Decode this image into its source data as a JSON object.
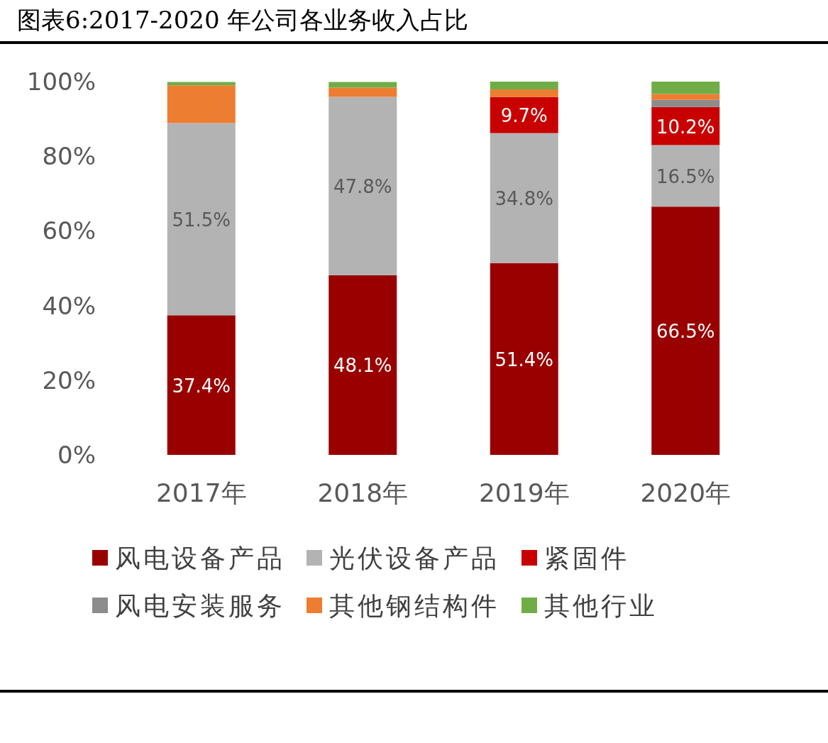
{
  "chart_data": {
    "type": "bar",
    "stacked": true,
    "title": "图表6:2017-2020 年公司各业务收入占比",
    "categories": [
      "2017年",
      "2018年",
      "2019年",
      "2020年"
    ],
    "series": [
      {
        "name": "风电设备产品",
        "color": "#990000",
        "values": [
          37.4,
          48.1,
          51.4,
          66.5
        ],
        "value_labels": [
          "37.4%",
          "48.1%",
          "51.4%",
          "66.5%"
        ]
      },
      {
        "name": "光伏设备产品",
        "color": "#b3b3b3",
        "values": [
          51.5,
          47.8,
          34.8,
          16.5
        ],
        "value_labels": [
          "51.5%",
          "47.8%",
          "34.8%",
          "16.5%"
        ]
      },
      {
        "name": "紧固件",
        "color": "#c80000",
        "values": [
          0,
          0,
          9.7,
          10.2
        ],
        "value_labels": [
          null,
          null,
          "9.7%",
          "10.2%"
        ]
      },
      {
        "name": "风电安装服务",
        "color": "#8c8c8c",
        "values": [
          0,
          0,
          0,
          1.9
        ]
      },
      {
        "name": "其他钢结构件",
        "color": "#ed7d31",
        "values": [
          10.1,
          2.5,
          2.0,
          1.6
        ]
      },
      {
        "name": "其他行业",
        "color": "#70ad47",
        "values": [
          0.9,
          1.5,
          2.1,
          3.3
        ]
      }
    ],
    "ylim": [
      0,
      100
    ],
    "yticks": [
      {
        "value": 0,
        "label": "0%"
      },
      {
        "value": 20,
        "label": "20%"
      },
      {
        "value": 40,
        "label": "40%"
      },
      {
        "value": 60,
        "label": "60%"
      },
      {
        "value": 80,
        "label": "80%"
      },
      {
        "value": 100,
        "label": "100%"
      }
    ],
    "grid": false,
    "legend": "bottom"
  }
}
